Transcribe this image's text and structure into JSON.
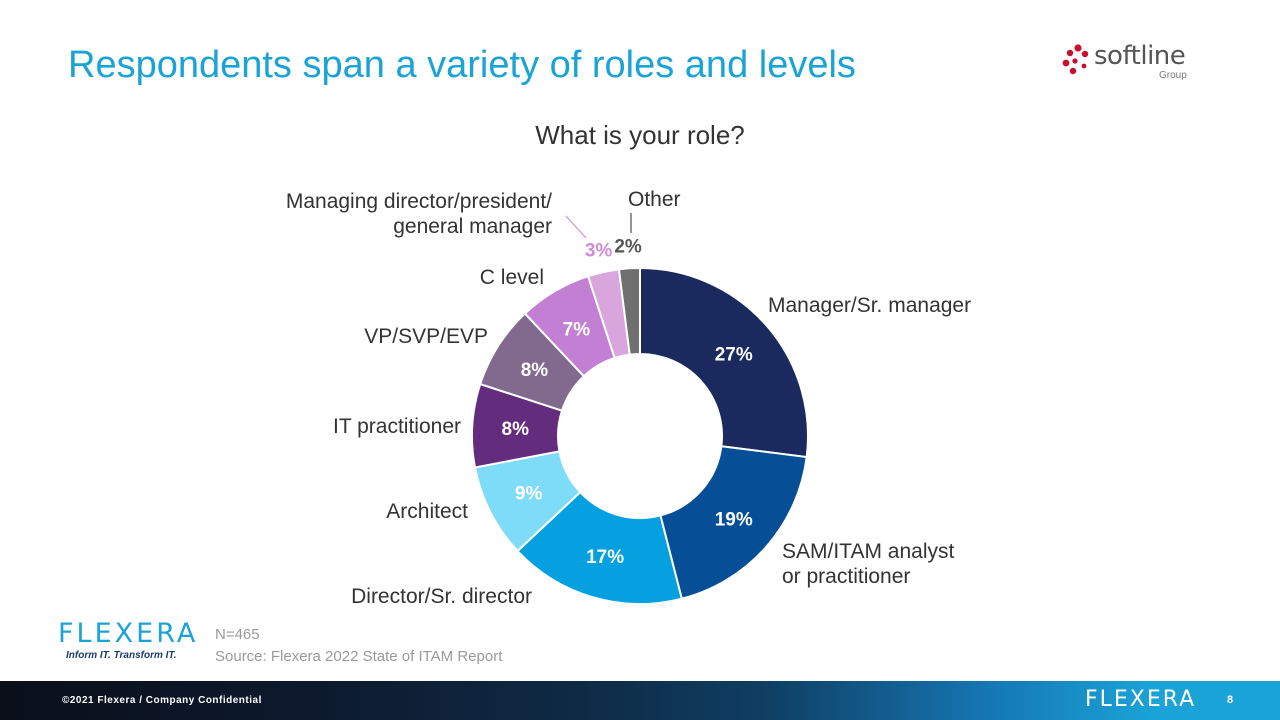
{
  "slide": {
    "title": "Respondents span a variety of roles and levels"
  },
  "brand": {
    "name": "softline",
    "sub": "Group"
  },
  "chart_data": {
    "type": "pie",
    "donut": true,
    "title": "What is your role?",
    "slices": [
      {
        "label": "Manager/Sr. manager",
        "value": 27,
        "display": "27%",
        "color": "#1a2a5e"
      },
      {
        "label": "SAM/ITAM analyst\nor practitioner",
        "value": 19,
        "display": "19%",
        "color": "#064f96"
      },
      {
        "label": "Director/Sr. director",
        "value": 17,
        "display": "17%",
        "color": "#04a0e0"
      },
      {
        "label": "Architect",
        "value": 9,
        "display": "9%",
        "color": "#7fdcf8"
      },
      {
        "label": "IT practitioner",
        "value": 8,
        "display": "8%",
        "color": "#642c7d"
      },
      {
        "label": "VP/SVP/EVP",
        "value": 8,
        "display": "8%",
        "color": "#826a8e"
      },
      {
        "label": "C level",
        "value": 7,
        "display": "7%",
        "color": "#c27fd4"
      },
      {
        "label": "Managing director/president/\ngeneral manager",
        "value": 3,
        "display": "3%",
        "color": "#d8a5dc"
      },
      {
        "label": "Other",
        "value": 2,
        "display": "2%",
        "color": "#6f6f6f"
      }
    ],
    "legend": "none"
  },
  "footer": {
    "logo_text": "FLEXERA",
    "tagline": "Inform IT. Transform IT.",
    "n_label": "N=465",
    "source": "Source: Flexera 2022 State of ITAM Report",
    "copyright": "©2021 Flexera / Company Confidential",
    "bar_logo": "FLEXERA",
    "page_number": "8"
  }
}
